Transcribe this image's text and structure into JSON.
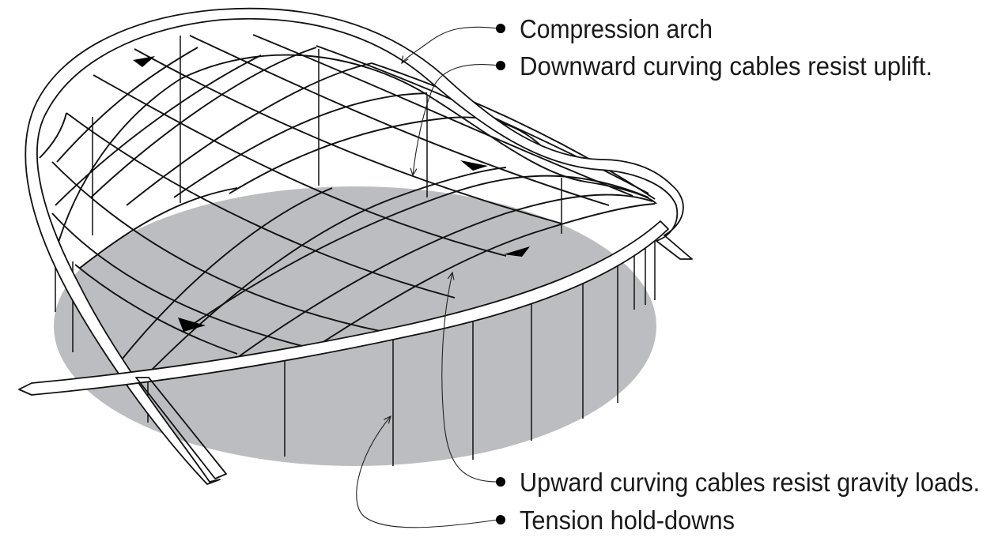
{
  "labels": {
    "compression_arch": "Compression arch",
    "downward_cables": "Downward curving cables resist uplift.",
    "upward_cables": "Upward curving cables resist gravity loads.",
    "tension_holddowns": "Tension hold-downs"
  },
  "colors": {
    "ground": "#bcbdc0",
    "line": "#111111",
    "background": "#ffffff"
  }
}
